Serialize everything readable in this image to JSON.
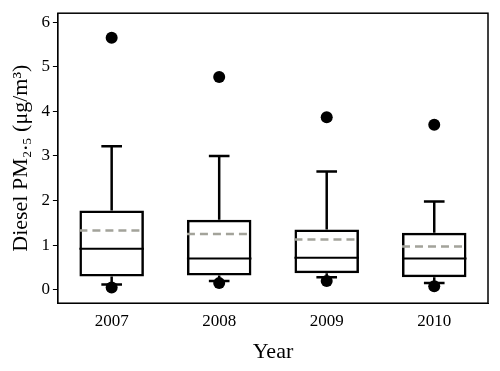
{
  "chart_data": {
    "type": "box",
    "x_label": "Year",
    "y_label": "Diesel PM₂.₅ (μg/m³)",
    "categories": [
      "2007",
      "2008",
      "2009",
      "2010"
    ],
    "boxes": [
      {
        "whisker_low": 0.12,
        "q1": 0.3,
        "median": 0.92,
        "q3": 1.78,
        "whisker_high": 3.22,
        "mean": 1.33
      },
      {
        "whisker_low": 0.2,
        "q1": 0.32,
        "median": 0.7,
        "q3": 1.57,
        "whisker_high": 3.0,
        "mean": 1.25
      },
      {
        "whisker_low": 0.28,
        "q1": 0.37,
        "median": 0.72,
        "q3": 1.35,
        "whisker_high": 2.65,
        "mean": 1.13
      },
      {
        "whisker_low": 0.15,
        "q1": 0.28,
        "median": 0.7,
        "q3": 1.28,
        "whisker_high": 1.98,
        "mean": 0.97
      }
    ],
    "outliers": [
      [
        0.05,
        5.65
      ],
      [
        0.15,
        4.77
      ],
      [
        0.2,
        3.87
      ],
      [
        0.08,
        3.7
      ]
    ],
    "color": "#000000",
    "marker": "circle",
    "ylim": [
      -0.3,
      6.2
    ],
    "yticks": [
      0,
      1,
      2,
      3,
      4,
      5,
      6
    ],
    "grid": false
  }
}
